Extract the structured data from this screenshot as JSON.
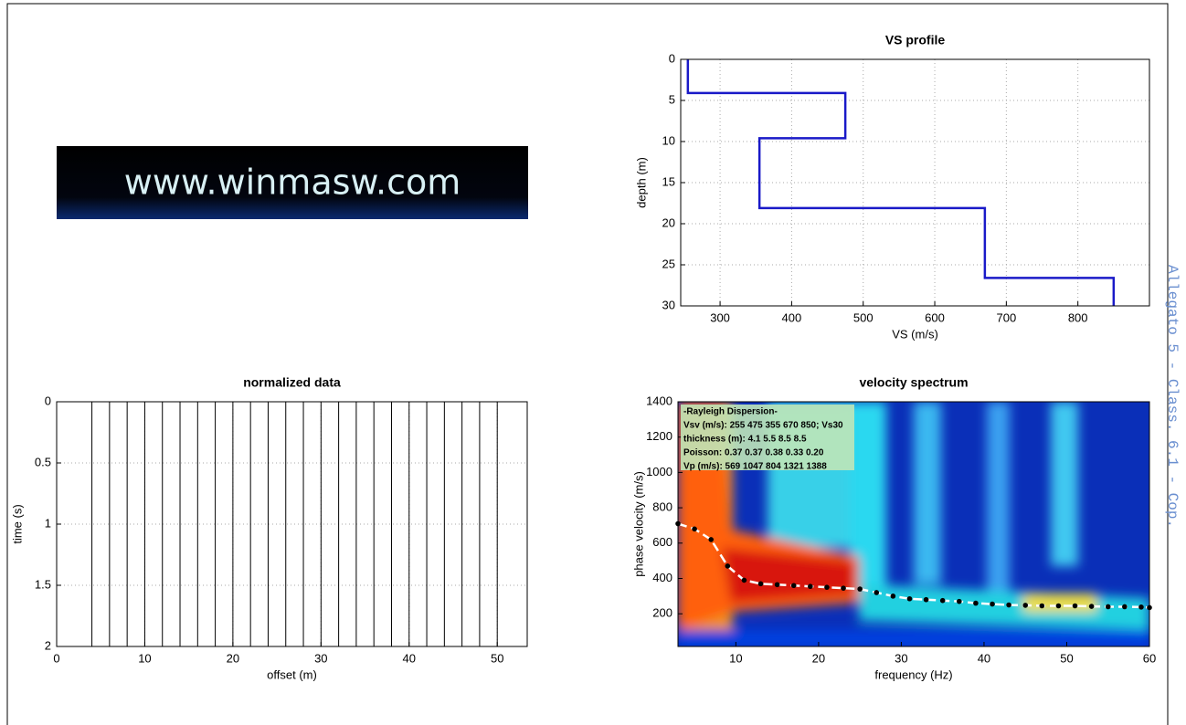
{
  "logo_text": "www.winmasw.com",
  "side_note": "Allegato 5 - Class. 6.1 - Cop.",
  "chart_data": [
    {
      "type": "step",
      "title": "VS profile",
      "xlabel": "VS (m/s)",
      "ylabel": "depth (m)",
      "x": [
        255,
        255,
        475,
        475,
        355,
        355,
        670,
        670,
        850,
        850
      ],
      "series": [
        {
          "color": "#1a1ac8",
          "values": [
            0,
            4.1,
            4.1,
            9.6,
            9.6,
            18.1,
            18.1,
            26.6,
            26.6,
            30
          ]
        }
      ],
      "xlim": [
        245,
        900
      ],
      "xticks": [
        300,
        400,
        500,
        600,
        700,
        800
      ],
      "ylim": [
        0,
        30
      ],
      "yticks": [
        0,
        5,
        10,
        15,
        20,
        25,
        30
      ],
      "y_reversed": true,
      "grid": true
    },
    {
      "type": "wiggle",
      "title": "normalized data",
      "xlabel": "offset (m)",
      "ylabel": "time (s)",
      "offsets": [
        4,
        6,
        8,
        10,
        12,
        14,
        16,
        18,
        20,
        22,
        24,
        26,
        28,
        30,
        32,
        34,
        36,
        38,
        40,
        42,
        44,
        46,
        48,
        50
      ],
      "color": "#000000",
      "xlim": [
        0,
        53.4
      ],
      "xticks": [
        0,
        10,
        20,
        30,
        40,
        50
      ],
      "ylim": [
        0,
        2
      ],
      "yticks": [
        0,
        0.5,
        1,
        1.5,
        2
      ],
      "y_reversed": true,
      "grid": true
    },
    {
      "type": "dispersion",
      "title": "velocity spectrum",
      "xlabel": "frequency (Hz)",
      "ylabel": "phase velocity (m/s)",
      "x": [
        3,
        5,
        7,
        9,
        11,
        13,
        15,
        17,
        19,
        21,
        23,
        25,
        27,
        29,
        31,
        33,
        35,
        37,
        39,
        41,
        43,
        45,
        47,
        49,
        51,
        53,
        55,
        57,
        59,
        60
      ],
      "series": [
        {
          "color": "#000000",
          "values": [
            710,
            680,
            620,
            470,
            390,
            370,
            365,
            360,
            355,
            350,
            345,
            340,
            320,
            300,
            285,
            280,
            275,
            270,
            260,
            255,
            250,
            248,
            245,
            245,
            245,
            242,
            240,
            240,
            238,
            235
          ]
        }
      ],
      "xlim": [
        3,
        60
      ],
      "xticks": [
        10,
        20,
        30,
        40,
        50,
        60
      ],
      "ylim": [
        15,
        1400
      ],
      "yticks": [
        200,
        400,
        600,
        800,
        1000,
        1200,
        1400
      ],
      "grid": false,
      "annotations": [
        "-Rayleigh Dispersion-",
        "Vsv (m/s): 255  475  355  670  850; Vs30",
        "thickness (m): 4.1    5.5    8.5    8.5",
        "Poisson: 0.37  0.37  0.38  0.33  0.20",
        "Vp (m/s): 569 1047  804 1321 1388"
      ]
    }
  ]
}
